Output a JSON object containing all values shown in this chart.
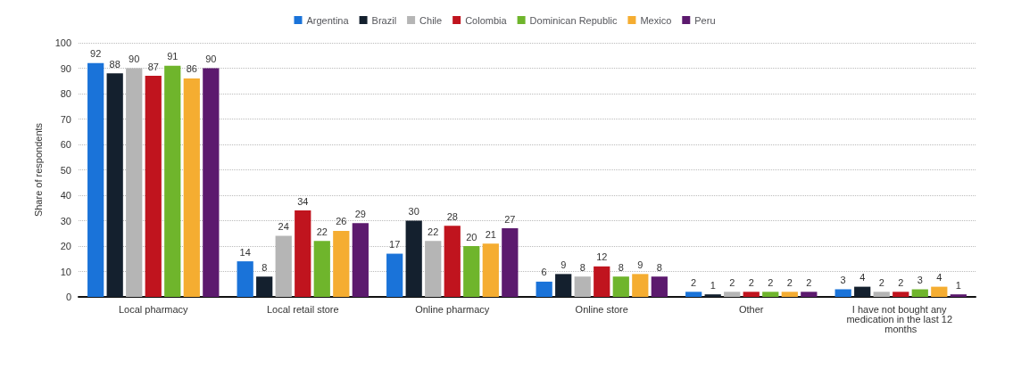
{
  "chart_data": {
    "type": "bar",
    "ylabel": "Share of respondents",
    "categories": [
      "Local pharmacy",
      "Local retail store",
      "Online pharmacy",
      "Online store",
      "Other",
      "I have not bought any medication in the last 12 months"
    ],
    "series": [
      {
        "name": "Argentina",
        "color": "#1a73d9",
        "values": [
          92,
          14,
          17,
          6,
          2,
          3
        ]
      },
      {
        "name": "Brazil",
        "color": "#14202e",
        "values": [
          88,
          8,
          30,
          9,
          1,
          4
        ]
      },
      {
        "name": "Chile",
        "color": "#b5b5b5",
        "values": [
          90,
          24,
          22,
          8,
          2,
          2
        ]
      },
      {
        "name": "Colombia",
        "color": "#c0141e",
        "values": [
          87,
          34,
          28,
          12,
          2,
          2
        ]
      },
      {
        "name": "Dominican Republic",
        "color": "#6fb52c",
        "values": [
          91,
          22,
          20,
          8,
          2,
          3
        ]
      },
      {
        "name": "Mexico",
        "color": "#f5ad31",
        "values": [
          86,
          26,
          21,
          9,
          2,
          4
        ]
      },
      {
        "name": "Peru",
        "color": "#5c1a6e",
        "values": [
          90,
          29,
          27,
          8,
          2,
          1
        ]
      }
    ],
    "ylim": [
      0,
      100
    ],
    "yticks": [
      0,
      10,
      20,
      30,
      40,
      50,
      60,
      70,
      80,
      90,
      100
    ],
    "grid": "y",
    "legend": "top",
    "data_labels": true
  }
}
